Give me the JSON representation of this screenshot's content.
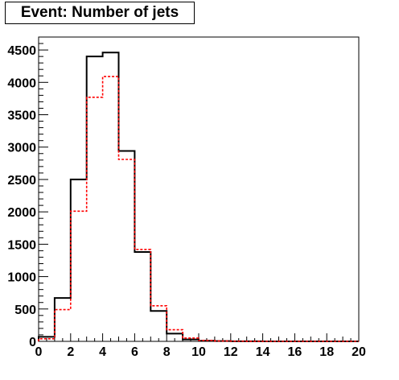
{
  "chart_data": {
    "type": "histogram",
    "title": "Event: Number of jets",
    "xlabel": "",
    "ylabel": "",
    "xlim": [
      0,
      20
    ],
    "ylim": [
      0,
      4700
    ],
    "bin_edges": [
      0,
      1,
      2,
      3,
      4,
      5,
      6,
      7,
      8,
      9,
      10,
      11,
      12,
      13,
      14,
      15,
      16,
      17,
      18,
      19,
      20
    ],
    "x_ticks": [
      0,
      2,
      4,
      6,
      8,
      10,
      12,
      14,
      16,
      18,
      20
    ],
    "y_ticks": [
      0,
      500,
      1000,
      1500,
      2000,
      2500,
      3000,
      3500,
      4000,
      4500
    ],
    "series": [
      {
        "style": "solid",
        "color": "#000000",
        "values": [
          70,
          670,
          2500,
          4400,
          4460,
          2940,
          1380,
          470,
          120,
          30,
          10,
          4,
          2,
          1,
          0,
          0,
          0,
          0,
          0,
          0
        ]
      },
      {
        "style": "dashed",
        "color": "#ff0000",
        "values": [
          40,
          490,
          2010,
          3770,
          4090,
          2810,
          1420,
          550,
          180,
          50,
          15,
          6,
          3,
          1,
          0,
          0,
          0,
          0,
          0,
          0
        ]
      }
    ]
  }
}
